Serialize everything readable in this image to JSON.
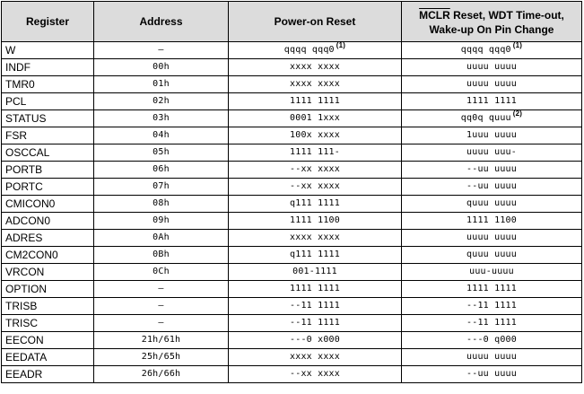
{
  "header": {
    "register": "Register",
    "address": "Address",
    "por": "Power-on Reset",
    "mclr_word": "MCLR",
    "mclr_rest": " Reset, WDT Time-out,",
    "mclr_line2": "Wake-up On Pin Change"
  },
  "rows": [
    {
      "register": "W",
      "address": "—",
      "por": "qqqq qqq0",
      "por_note": "(1)",
      "mclr": "qqqq qqq0",
      "mclr_note": "(1)"
    },
    {
      "register": "INDF",
      "address": "00h",
      "por": "xxxx xxxx",
      "por_note": "",
      "mclr": "uuuu uuuu",
      "mclr_note": ""
    },
    {
      "register": "TMR0",
      "address": "01h",
      "por": "xxxx xxxx",
      "por_note": "",
      "mclr": "uuuu uuuu",
      "mclr_note": ""
    },
    {
      "register": "PCL",
      "address": "02h",
      "por": "1111 1111",
      "por_note": "",
      "mclr": "1111 1111",
      "mclr_note": ""
    },
    {
      "register": "STATUS",
      "address": "03h",
      "por": "0001 1xxx",
      "por_note": "",
      "mclr": "qq0q quuu",
      "mclr_note": "(2)"
    },
    {
      "register": "FSR",
      "address": "04h",
      "por": "100x xxxx",
      "por_note": "",
      "mclr": "1uuu uuuu",
      "mclr_note": ""
    },
    {
      "register": "OSCCAL",
      "address": "05h",
      "por": "1111 111-",
      "por_note": "",
      "mclr": "uuuu uuu-",
      "mclr_note": ""
    },
    {
      "register": "PORTB",
      "address": "06h",
      "por": "--xx xxxx",
      "por_note": "",
      "mclr": "--uu uuuu",
      "mclr_note": ""
    },
    {
      "register": "PORTC",
      "address": "07h",
      "por": "--xx xxxx",
      "por_note": "",
      "mclr": "--uu uuuu",
      "mclr_note": ""
    },
    {
      "register": "CMICON0",
      "address": "08h",
      "por": "q111 1111",
      "por_note": "",
      "mclr": "quuu uuuu",
      "mclr_note": ""
    },
    {
      "register": "ADCON0",
      "address": "09h",
      "por": "1111 1100",
      "por_note": "",
      "mclr": "1111 1100",
      "mclr_note": ""
    },
    {
      "register": "ADRES",
      "address": "0Ah",
      "por": "xxxx xxxx",
      "por_note": "",
      "mclr": "uuuu uuuu",
      "mclr_note": ""
    },
    {
      "register": "CM2CON0",
      "address": "0Bh",
      "por": "q111 1111",
      "por_note": "",
      "mclr": "quuu uuuu",
      "mclr_note": ""
    },
    {
      "register": "VRCON",
      "address": "0Ch",
      "por": "001-1111",
      "por_note": "",
      "mclr": "uuu-uuuu",
      "mclr_note": ""
    },
    {
      "register": "OPTION",
      "address": "—",
      "por": "1111 1111",
      "por_note": "",
      "mclr": "1111 1111",
      "mclr_note": ""
    },
    {
      "register": "TRISB",
      "address": "—",
      "por": "--11 1111",
      "por_note": "",
      "mclr": "--11 1111",
      "mclr_note": ""
    },
    {
      "register": "TRISC",
      "address": "—",
      "por": "--11 1111",
      "por_note": "",
      "mclr": "--11 1111",
      "mclr_note": ""
    },
    {
      "register": "EECON",
      "address": "21h/61h",
      "por": "---0 x000",
      "por_note": "",
      "mclr": "---0 q000",
      "mclr_note": ""
    },
    {
      "register": "EEDATA",
      "address": "25h/65h",
      "por": "xxxx xxxx",
      "por_note": "",
      "mclr": "uuuu uuuu",
      "mclr_note": ""
    },
    {
      "register": "EEADR",
      "address": "26h/66h",
      "por": "--xx xxxx",
      "por_note": "",
      "mclr": "--uu uuuu",
      "mclr_note": ""
    }
  ]
}
